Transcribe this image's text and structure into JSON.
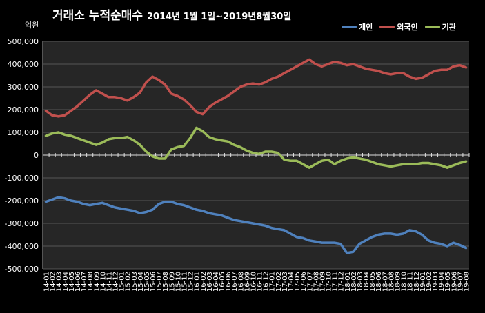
{
  "title": "거래소  누적순매수",
  "subtitle": "2014년 1월 1일~2019년8월30일",
  "unit_label": "억원",
  "chart_data": {
    "type": "line",
    "ylim": [
      -500000,
      500000
    ],
    "yticks": [
      "500,000",
      "400,000",
      "300,000",
      "200,000",
      "100,000",
      "0",
      "-100,000",
      "-200,000",
      "-300,000",
      "-400,000",
      "-500,000"
    ],
    "x": [
      "14-01",
      "14-02",
      "14-03",
      "14-04",
      "14-05",
      "14-06",
      "14-07",
      "14-08",
      "14-09",
      "14-10",
      "14-11",
      "14-12",
      "15-01",
      "15-02",
      "15-03",
      "15-04",
      "15-05",
      "15-06",
      "15-07",
      "15-08",
      "15-09",
      "15-10",
      "15-11",
      "15-12",
      "16-01",
      "16-02",
      "16-03",
      "16-04",
      "16-05",
      "16-06",
      "16-07",
      "16-08",
      "16-09",
      "16-10",
      "16-11",
      "16-12",
      "17-01",
      "17-02",
      "17-03",
      "17-04",
      "17-05",
      "17-06",
      "17-07",
      "17-08",
      "17-09",
      "17-10",
      "17-11",
      "17-12",
      "18-01",
      "18-02",
      "18-03",
      "18-04",
      "18-05",
      "18-06",
      "18-07",
      "18-08",
      "18-09",
      "18-10",
      "18-11",
      "18-12",
      "19-01",
      "19-02",
      "19-03",
      "19-04",
      "19-05",
      "19-06",
      "19-07",
      "19-08"
    ],
    "series": [
      {
        "name": "개인",
        "color": "#4f81bd",
        "values": [
          -205000,
          -195000,
          -185000,
          -190000,
          -200000,
          -205000,
          -215000,
          -220000,
          -215000,
          -210000,
          -220000,
          -230000,
          -235000,
          -240000,
          -245000,
          -255000,
          -250000,
          -240000,
          -215000,
          -205000,
          -205000,
          -215000,
          -220000,
          -230000,
          -240000,
          -245000,
          -255000,
          -260000,
          -265000,
          -275000,
          -285000,
          -290000,
          -295000,
          -300000,
          -305000,
          -310000,
          -320000,
          -325000,
          -330000,
          -345000,
          -360000,
          -365000,
          -375000,
          -380000,
          -385000,
          -385000,
          -385000,
          -390000,
          -430000,
          -425000,
          -390000,
          -375000,
          -360000,
          -350000,
          -345000,
          -345000,
          -350000,
          -345000,
          -330000,
          -335000,
          -350000,
          -375000,
          -385000,
          -390000,
          -400000,
          -385000,
          -395000,
          -408000
        ]
      },
      {
        "name": "외국인",
        "color": "#c0504d",
        "values": [
          195000,
          175000,
          170000,
          175000,
          195000,
          215000,
          240000,
          265000,
          285000,
          270000,
          255000,
          255000,
          250000,
          240000,
          255000,
          275000,
          320000,
          345000,
          330000,
          310000,
          270000,
          260000,
          245000,
          220000,
          190000,
          180000,
          210000,
          230000,
          245000,
          260000,
          280000,
          300000,
          310000,
          315000,
          310000,
          320000,
          335000,
          345000,
          360000,
          375000,
          390000,
          405000,
          420000,
          400000,
          390000,
          400000,
          410000,
          405000,
          395000,
          400000,
          390000,
          380000,
          375000,
          370000,
          360000,
          355000,
          360000,
          360000,
          345000,
          335000,
          340000,
          355000,
          370000,
          375000,
          375000,
          390000,
          395000,
          385000
        ]
      },
      {
        "name": "기관",
        "color": "#9bbb59",
        "values": [
          85000,
          95000,
          100000,
          90000,
          85000,
          75000,
          65000,
          55000,
          45000,
          55000,
          70000,
          75000,
          75000,
          80000,
          65000,
          45000,
          15000,
          -5000,
          -15000,
          -15000,
          25000,
          35000,
          40000,
          75000,
          120000,
          105000,
          80000,
          70000,
          65000,
          60000,
          45000,
          35000,
          20000,
          10000,
          5000,
          15000,
          15000,
          10000,
          -20000,
          -25000,
          -25000,
          -40000,
          -55000,
          -40000,
          -25000,
          -20000,
          -40000,
          -25000,
          -15000,
          -10000,
          -15000,
          -20000,
          -30000,
          -40000,
          -45000,
          -50000,
          -45000,
          -40000,
          -40000,
          -40000,
          -35000,
          -35000,
          -40000,
          -45000,
          -55000,
          -45000,
          -35000,
          -28000
        ]
      }
    ]
  }
}
